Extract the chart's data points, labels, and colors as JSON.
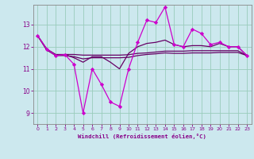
{
  "xlabel": "Windchill (Refroidissement éolien,°C)",
  "bg_color": "#cce8ee",
  "grid_color": "#99ccbb",
  "line_color_main": "#cc00cc",
  "line_color_smooth": "#660066",
  "xlim": [
    -0.5,
    23.5
  ],
  "ylim": [
    8.5,
    13.9
  ],
  "yticks": [
    9,
    10,
    11,
    12,
    13
  ],
  "xticks": [
    0,
    1,
    2,
    3,
    4,
    5,
    6,
    7,
    8,
    9,
    10,
    11,
    12,
    13,
    14,
    15,
    16,
    17,
    18,
    19,
    20,
    21,
    22,
    23
  ],
  "series_main": {
    "x": [
      0,
      1,
      2,
      3,
      4,
      5,
      6,
      7,
      8,
      9,
      10,
      11,
      12,
      13,
      14,
      15,
      16,
      17,
      18,
      19,
      20,
      21,
      22,
      23
    ],
    "y": [
      12.5,
      11.9,
      11.6,
      11.65,
      11.2,
      9.0,
      11.0,
      10.3,
      9.5,
      9.3,
      11.0,
      12.2,
      13.2,
      13.1,
      13.8,
      12.1,
      12.0,
      12.8,
      12.6,
      12.1,
      12.2,
      12.0,
      12.0,
      11.6
    ]
  },
  "series_smooth1": {
    "x": [
      0,
      1,
      2,
      3,
      4,
      5,
      6,
      7,
      8,
      9,
      10,
      11,
      12,
      13,
      14,
      15,
      16,
      17,
      18,
      19,
      20,
      21,
      22,
      23
    ],
    "y": [
      12.5,
      11.9,
      11.6,
      11.65,
      11.5,
      11.3,
      11.55,
      11.55,
      11.3,
      11.0,
      11.7,
      12.0,
      12.15,
      12.2,
      12.3,
      12.1,
      12.0,
      12.05,
      12.05,
      12.0,
      12.15,
      12.0,
      12.0,
      11.6
    ]
  },
  "series_smooth2": {
    "x": [
      0,
      1,
      2,
      3,
      4,
      5,
      6,
      7,
      8,
      9,
      10,
      11,
      12,
      13,
      14,
      15,
      16,
      17,
      18,
      19,
      20,
      21,
      22,
      23
    ],
    "y": [
      12.5,
      11.85,
      11.6,
      11.6,
      11.55,
      11.45,
      11.5,
      11.5,
      11.5,
      11.5,
      11.52,
      11.6,
      11.65,
      11.68,
      11.72,
      11.7,
      11.7,
      11.72,
      11.72,
      11.72,
      11.74,
      11.74,
      11.74,
      11.6
    ]
  },
  "series_smooth3": {
    "x": [
      0,
      1,
      2,
      3,
      4,
      5,
      6,
      7,
      8,
      9,
      10,
      11,
      12,
      13,
      14,
      15,
      16,
      17,
      18,
      19,
      20,
      21,
      22,
      23
    ],
    "y": [
      12.5,
      11.9,
      11.65,
      11.65,
      11.65,
      11.62,
      11.62,
      11.62,
      11.62,
      11.62,
      11.64,
      11.7,
      11.72,
      11.76,
      11.8,
      11.8,
      11.8,
      11.82,
      11.82,
      11.82,
      11.82,
      11.82,
      11.82,
      11.6
    ]
  }
}
